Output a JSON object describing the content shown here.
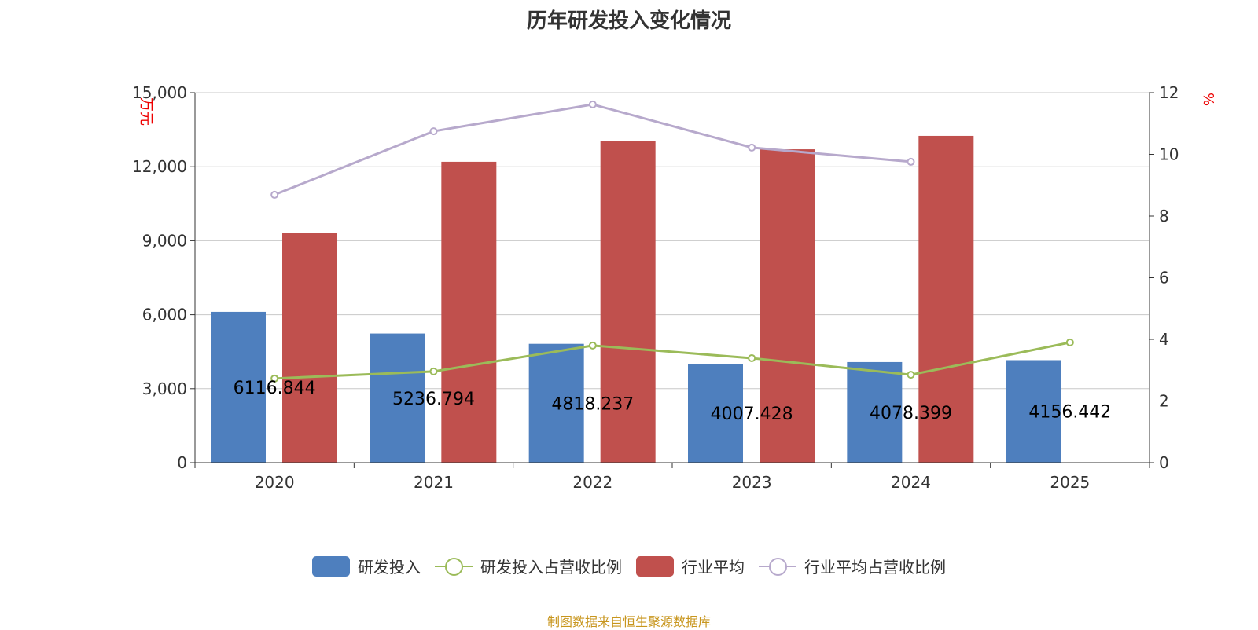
{
  "title": "历年研发投入变化情况",
  "source": "制图数据来自恒生聚源数据库",
  "colors": {
    "rd": "#4e7fbe",
    "rd_ratio": "#9bbb59",
    "industry": "#c0504d",
    "industry_ratio": "#b7a9cc"
  },
  "chart_data": {
    "type": "bar",
    "title": "历年研发投入变化情况",
    "categories": [
      "2020",
      "2021",
      "2022",
      "2023",
      "2024",
      "2025"
    ],
    "ylabel": "万元",
    "ylabel_right": "%",
    "ylim": [
      0,
      15000
    ],
    "ylim_right": [
      0,
      12
    ],
    "yticks": [
      "0",
      "3,000",
      "6,000",
      "9,000",
      "12,000",
      "15,000"
    ],
    "yticks_right": [
      "0",
      "2",
      "4",
      "6",
      "8",
      "10",
      "12"
    ],
    "grid": true,
    "legend_position": "bottom",
    "series": [
      {
        "name": "研发投入",
        "type": "bar",
        "axis": "left",
        "values": [
          6116.844,
          5236.794,
          4818.237,
          4007.428,
          4078.399,
          4156.442
        ],
        "labels": [
          "6116.844",
          "5236.794",
          "4818.237",
          "4007.428",
          "4078.399",
          "4156.442"
        ]
      },
      {
        "name": "研发投入占营收比例",
        "type": "line",
        "axis": "right",
        "values": [
          2.73,
          2.96,
          3.8,
          3.39,
          2.85,
          3.9
        ]
      },
      {
        "name": "行业平均",
        "type": "bar",
        "axis": "left",
        "values": [
          9300,
          12200,
          13055,
          12705,
          13250,
          null
        ]
      },
      {
        "name": "行业平均占营收比例",
        "type": "line",
        "axis": "right",
        "values": [
          8.69,
          10.75,
          11.62,
          10.22,
          9.76,
          null
        ]
      }
    ]
  }
}
